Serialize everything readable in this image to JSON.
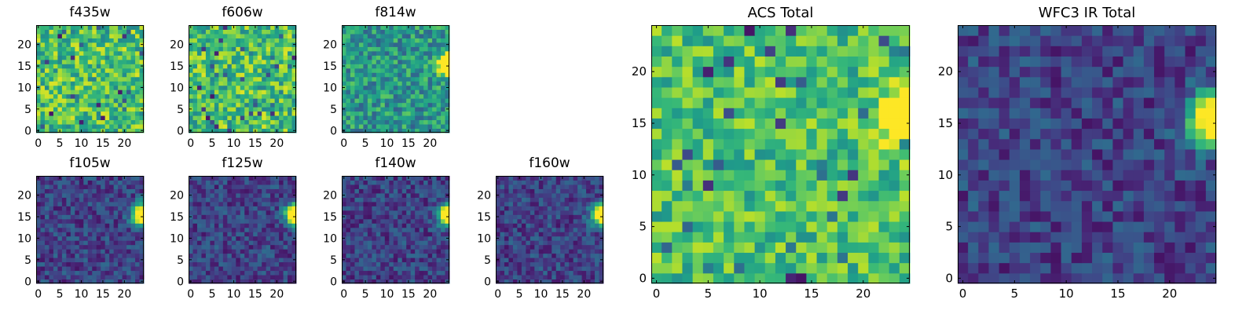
{
  "chart_data": [
    {
      "type": "heatmap",
      "title": "f435w",
      "xlim": [
        0,
        24
      ],
      "ylim": [
        0,
        24
      ],
      "xticks": [
        0,
        5,
        10,
        15,
        20
      ],
      "yticks": [
        0,
        5,
        10,
        15,
        20
      ],
      "colormap": "viridis",
      "pattern": "noise-high",
      "seed": 11
    },
    {
      "type": "heatmap",
      "title": "f606w",
      "xlim": [
        0,
        24
      ],
      "ylim": [
        0,
        24
      ],
      "xticks": [
        0,
        5,
        10,
        15,
        20
      ],
      "yticks": [
        0,
        5,
        10,
        15,
        20
      ],
      "colormap": "viridis",
      "pattern": "noise-high",
      "seed": 23
    },
    {
      "type": "heatmap",
      "title": "f814w",
      "xlim": [
        0,
        24
      ],
      "ylim": [
        0,
        24
      ],
      "xticks": [
        0,
        5,
        10,
        15,
        20
      ],
      "yticks": [
        0,
        5,
        10,
        15,
        20
      ],
      "colormap": "viridis",
      "pattern": "noise-mid-source",
      "seed": 37
    },
    {
      "type": "heatmap",
      "title": "f105w",
      "xlim": [
        0,
        24
      ],
      "ylim": [
        0,
        24
      ],
      "xticks": [
        0,
        5,
        10,
        15,
        20
      ],
      "yticks": [
        0,
        5,
        10,
        15,
        20
      ],
      "colormap": "viridis",
      "pattern": "dark-source",
      "seed": 41
    },
    {
      "type": "heatmap",
      "title": "f125w",
      "xlim": [
        0,
        24
      ],
      "ylim": [
        0,
        24
      ],
      "xticks": [
        0,
        5,
        10,
        15,
        20
      ],
      "yticks": [
        0,
        5,
        10,
        15,
        20
      ],
      "colormap": "viridis",
      "pattern": "dark-source",
      "seed": 53
    },
    {
      "type": "heatmap",
      "title": "f140w",
      "xlim": [
        0,
        24
      ],
      "ylim": [
        0,
        24
      ],
      "xticks": [
        0,
        5,
        10,
        15,
        20
      ],
      "yticks": [
        0,
        5,
        10,
        15,
        20
      ],
      "colormap": "viridis",
      "pattern": "dark-source",
      "seed": 67
    },
    {
      "type": "heatmap",
      "title": "f160w",
      "xlim": [
        0,
        24
      ],
      "ylim": [
        0,
        24
      ],
      "xticks": [
        0,
        5,
        10,
        15,
        20
      ],
      "yticks": [
        0,
        5,
        10,
        15,
        20
      ],
      "colormap": "viridis",
      "pattern": "dark-source",
      "seed": 79
    },
    {
      "type": "heatmap",
      "title": "ACS Total",
      "xlim": [
        0,
        24
      ],
      "ylim": [
        0,
        24
      ],
      "xticks": [
        0,
        5,
        10,
        15,
        20
      ],
      "yticks": [
        0,
        5,
        10,
        15,
        20
      ],
      "colormap": "viridis",
      "pattern": "noise-high-source",
      "seed": 97
    },
    {
      "type": "heatmap",
      "title": "WFC3 IR Total",
      "xlim": [
        0,
        24
      ],
      "ylim": [
        0,
        24
      ],
      "xticks": [
        0,
        5,
        10,
        15,
        20
      ],
      "yticks": [
        0,
        5,
        10,
        15,
        20
      ],
      "colormap": "viridis",
      "pattern": "dark-source",
      "seed": 131
    }
  ]
}
